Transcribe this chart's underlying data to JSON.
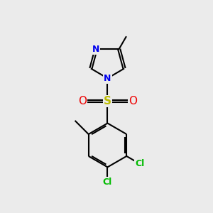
{
  "bg_color": "#ebebeb",
  "bond_color": "#000000",
  "N_color": "#0000ee",
  "O_color": "#ee0000",
  "S_color": "#bbbb00",
  "Cl_color": "#00bb00",
  "C_color": "#000000",
  "line_width": 1.5,
  "dbo": 0.055,
  "xlim": [
    0,
    10
  ],
  "ylim": [
    0,
    10
  ]
}
